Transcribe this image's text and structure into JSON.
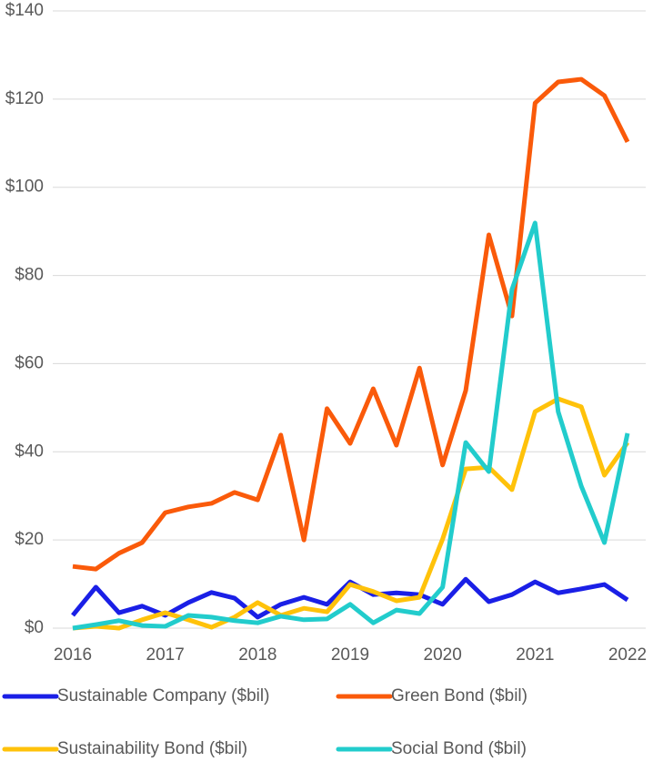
{
  "chart_data": {
    "type": "line",
    "x": [
      2016,
      2016.25,
      2016.5,
      2016.75,
      2017,
      2017.25,
      2017.5,
      2017.75,
      2018,
      2018.25,
      2018.5,
      2018.75,
      2019,
      2019.25,
      2019.5,
      2019.75,
      2020,
      2020.25,
      2020.5,
      2020.75,
      2021,
      2021.25,
      2021.5,
      2021.75,
      2022
    ],
    "series": [
      {
        "name": "Sustainable Company ($bil)",
        "color": "#1a1fe6",
        "values": [
          2.9,
          9.3,
          3.5,
          5,
          2.9,
          5.8,
          8.1,
          6.8,
          2.5,
          5.4,
          7,
          5.4,
          10.5,
          7.6,
          8,
          7.6,
          5.4,
          11.1,
          6,
          7.6,
          10.5,
          8,
          8.9,
          9.9,
          6.4
        ]
      },
      {
        "name": "Green Bond ($bil)",
        "color": "#fa5a0a",
        "values": [
          14,
          13.4,
          17,
          19.4,
          26.2,
          27.5,
          28.3,
          30.8,
          29.1,
          43.8,
          20,
          49.8,
          41.9,
          54.3,
          41.5,
          59,
          37,
          53.9,
          89.2,
          70.8,
          119.1,
          123.9,
          124.5,
          120.8,
          110.3
        ]
      },
      {
        "name": "Sustainability Bond ($bil)",
        "color": "#ffc20a",
        "values": [
          0,
          0.4,
          0,
          1.9,
          3.5,
          1.9,
          0.2,
          2.5,
          5.8,
          2.9,
          4.5,
          3.7,
          9.9,
          8.3,
          6.2,
          7,
          20.2,
          36.1,
          36.5,
          31.4,
          49.1,
          52,
          50.2,
          34.7,
          42.1
        ]
      },
      {
        "name": "Social Bond ($bil)",
        "color": "#22cccc",
        "values": [
          0,
          0.8,
          1.7,
          0.6,
          0.4,
          2.9,
          2.5,
          1.7,
          1.2,
          2.7,
          1.9,
          2.1,
          5.4,
          1.2,
          4.1,
          3.3,
          9.3,
          42.1,
          35.5,
          76.8,
          91.9,
          49.1,
          32.2,
          19.4,
          44.2
        ]
      }
    ],
    "xlim": [
      2016,
      2022
    ],
    "xticks": [
      2016,
      2017,
      2018,
      2019,
      2020,
      2021,
      2022
    ],
    "ylim": [
      0,
      140
    ],
    "yticks": [
      {
        "value": 0,
        "label": "$0"
      },
      {
        "value": 20,
        "label": "$20"
      },
      {
        "value": 40,
        "label": "$40"
      },
      {
        "value": 60,
        "label": "$60"
      },
      {
        "value": 80,
        "label": "$80"
      },
      {
        "value": 100,
        "label": "$100"
      },
      {
        "value": 120,
        "label": "$120"
      },
      {
        "value": 140,
        "label": "$140"
      }
    ],
    "grid": true,
    "legend": "bottom"
  }
}
